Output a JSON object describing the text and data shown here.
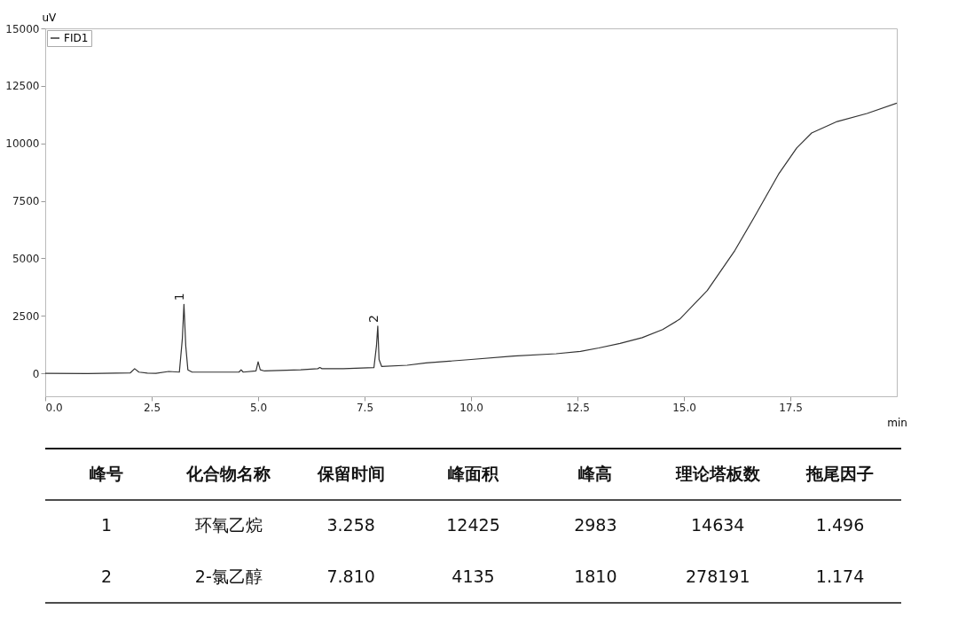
{
  "chart_data": {
    "type": "line",
    "xlabel": "min",
    "ylabel": "uV",
    "xlim": [
      0,
      20
    ],
    "ylim": [
      -1000,
      15000
    ],
    "xticks": [
      {
        "value": 0,
        "label": "0.0"
      },
      {
        "value": 2.5,
        "label": "2.5"
      },
      {
        "value": 5,
        "label": "5.0"
      },
      {
        "value": 7.5,
        "label": "7.5"
      },
      {
        "value": 10,
        "label": "10.0"
      },
      {
        "value": 12.5,
        "label": "12.5"
      },
      {
        "value": 15,
        "label": "15.0"
      },
      {
        "value": 17.5,
        "label": "17.5"
      }
    ],
    "yticks": [
      0,
      2500,
      5000,
      7500,
      10000,
      12500,
      15000
    ],
    "grid": false,
    "legend": "top left",
    "series": [
      {
        "name": "FID1",
        "color": "#333333",
        "x": [
          0,
          1.0,
          2.0,
          2.1,
          2.2,
          2.4,
          2.6,
          2.9,
          3.15,
          3.22,
          3.258,
          3.3,
          3.35,
          3.45,
          4.0,
          4.55,
          4.6,
          4.65,
          4.95,
          5.0,
          5.05,
          5.15,
          6.0,
          6.4,
          6.45,
          6.5,
          7.0,
          7.72,
          7.78,
          7.81,
          7.84,
          7.9,
          8.5,
          8.94,
          10.0,
          11.0,
          12.0,
          12.57,
          13.0,
          13.5,
          14.02,
          14.5,
          14.9,
          15.55,
          16.2,
          16.64,
          17.22,
          17.65,
          18.0,
          18.6,
          19.3,
          20.0
        ],
        "values": [
          0,
          -10,
          20,
          200,
          50,
          10,
          0,
          80,
          50,
          1500,
          3000,
          1200,
          150,
          50,
          50,
          50,
          150,
          50,
          100,
          500,
          150,
          100,
          150,
          200,
          250,
          200,
          200,
          250,
          1200,
          2050,
          600,
          300,
          350,
          450,
          600,
          750,
          850,
          950,
          1100,
          1300,
          1550,
          1900,
          2350,
          3600,
          5350,
          6750,
          8650,
          9800,
          10450,
          10950,
          11300,
          11750
        ]
      }
    ],
    "annotations": [
      {
        "text": "1",
        "x": 3.258,
        "y": 3000
      },
      {
        "text": "2",
        "x": 7.81,
        "y": 2050
      },
      "峰号",
      "化合物名称",
      "保留时间",
      "峰面积",
      "峰高",
      "理论塔板数",
      "拖尾因子",
      "1",
      "环氧乙烷",
      "3.258",
      "12425",
      "2983",
      "14634",
      "1.496",
      "2",
      "2-氯乙醇",
      "7.810",
      "4135",
      "1810",
      "278191",
      "1.174"
    ]
  }
}
